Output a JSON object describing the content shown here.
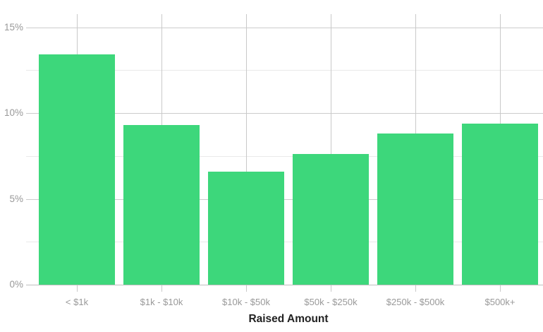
{
  "chart_data": {
    "type": "bar",
    "title": "",
    "xlabel": "Raised Amount",
    "ylabel": "",
    "categories": [
      "< $1k",
      "$1k - $10k",
      "$10k - $50k",
      "$50k - $250k",
      "$250k - $500k",
      "$500k+"
    ],
    "values": [
      13.4,
      9.3,
      6.6,
      7.6,
      8.8,
      9.4
    ],
    "value_unit": "%",
    "ylim": [
      0,
      15.8
    ],
    "yticks": [
      0,
      5,
      10,
      15
    ],
    "ytick_labels": [
      "0%",
      "5%",
      "10%",
      "15%"
    ],
    "minor_yticks": [
      2.5,
      7.5,
      12.5
    ],
    "grid": true,
    "legend": false,
    "colors": {
      "bar": "#3dd77b",
      "major_grid": "#cccccc",
      "minor_grid": "#e9e9e9",
      "vertical_grid": "#c9c9c9",
      "axis_line": "#bfbfbf",
      "tick_label": "#999999",
      "axis_title": "#222222",
      "background": "#ffffff"
    }
  }
}
